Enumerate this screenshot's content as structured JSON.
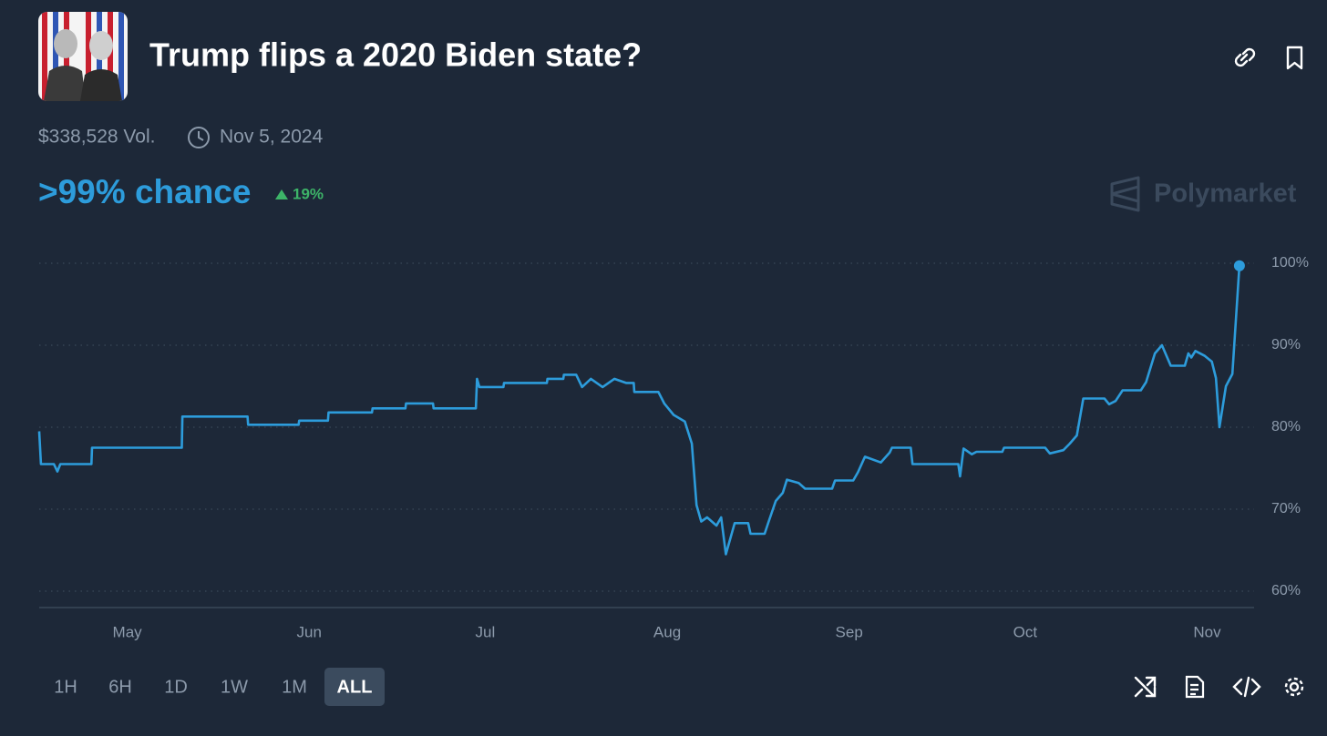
{
  "header": {
    "title": "Trump flips a 2020 Biden state?",
    "volume": "$338,528 Vol.",
    "end_date": "Nov 5, 2024",
    "chance": ">99% chance",
    "change": "19%",
    "brand": "Polymarket"
  },
  "chart_data": {
    "type": "line",
    "color": "#2d9cdb",
    "grid": true,
    "x": [
      107,
      107.3,
      109.5,
      110.1,
      110.6,
      115.9,
      116,
      131.3,
      131.4,
      142.5,
      142.6,
      151.2,
      151.3,
      156.2,
      156.3,
      163.7,
      163.8,
      169.4,
      169.5,
      174.1,
      174.2,
      181.4,
      181.6,
      182,
      186.1,
      186.2,
      193.5,
      193.6,
      196.3,
      196.4,
      198.5,
      199.5,
      201,
      203,
      205,
      207,
      208.3,
      208.4,
      212.5,
      213.5,
      215.1,
      217,
      218.2,
      219,
      219.8,
      220.8,
      222.4,
      223.2,
      224,
      225.5,
      227.8,
      228.2,
      230.6,
      231.3,
      232.5,
      233.7,
      234.4,
      236.4,
      237.5,
      242.1,
      242.6,
      245.7,
      246.5,
      247.7,
      250.4,
      251.9,
      252.3,
      255.5,
      255.8,
      263.6,
      263.9,
      264.5,
      265.9,
      266.7,
      271.1,
      271.4,
      278.4,
      279.2,
      281.5,
      282.6,
      283.8,
      284.9,
      288.5,
      289.3,
      290.4,
      291.6,
      294.7,
      295.6,
      297.1,
      298.3,
      299.8,
      302.2,
      302.8,
      303.3,
      304,
      305.6,
      306.8,
      307.5,
      308.1,
      309.2,
      310.3,
      311.5
    ],
    "values": [
      79.5,
      75.5,
      75.5,
      74.6,
      75.5,
      75.5,
      77.5,
      77.5,
      81.3,
      81.3,
      80.3,
      80.3,
      80.8,
      80.8,
      81.8,
      81.8,
      82.3,
      82.3,
      82.9,
      82.9,
      82.3,
      82.3,
      85.9,
      84.9,
      84.9,
      85.4,
      85.4,
      85.9,
      85.9,
      86.4,
      86.4,
      84.9,
      85.9,
      84.9,
      85.9,
      85.4,
      85.4,
      84.3,
      84.3,
      82.9,
      81.5,
      80.7,
      78,
      70.5,
      68.5,
      69,
      68,
      69,
      64.5,
      68.3,
      68.3,
      67,
      67,
      68.5,
      71,
      72,
      73.6,
      73.2,
      72.5,
      72.5,
      73.5,
      73.5,
      74.5,
      76.4,
      75.7,
      76.9,
      77.5,
      77.5,
      75.5,
      75.5,
      74,
      77.4,
      76.7,
      77,
      77,
      77.5,
      77.5,
      76.8,
      77.2,
      78,
      79,
      83.5,
      83.5,
      82.8,
      83.2,
      84.5,
      84.5,
      85.5,
      89,
      90,
      87.5,
      87.5,
      89,
      88.5,
      89.3,
      88.7,
      88,
      86,
      80,
      85,
      86.5,
      99.7
    ],
    "xlim": [
      107,
      314
    ],
    "xticks": [
      {
        "value": 122,
        "label": "May"
      },
      {
        "value": 153,
        "label": "Jun"
      },
      {
        "value": 183,
        "label": "Jul"
      },
      {
        "value": 214,
        "label": "Aug"
      },
      {
        "value": 245,
        "label": "Sep"
      },
      {
        "value": 275,
        "label": "Oct"
      },
      {
        "value": 306,
        "label": "Nov"
      }
    ],
    "ylim": [
      58,
      100
    ],
    "yticks": [
      {
        "value": 60,
        "label": "60%"
      },
      {
        "value": 70,
        "label": "70%"
      },
      {
        "value": 80,
        "label": "80%"
      },
      {
        "value": 90,
        "label": "90%"
      },
      {
        "value": 100,
        "label": "100%"
      }
    ]
  },
  "controls": {
    "ranges": [
      "1H",
      "6H",
      "1D",
      "1W",
      "1M",
      "ALL"
    ]
  }
}
